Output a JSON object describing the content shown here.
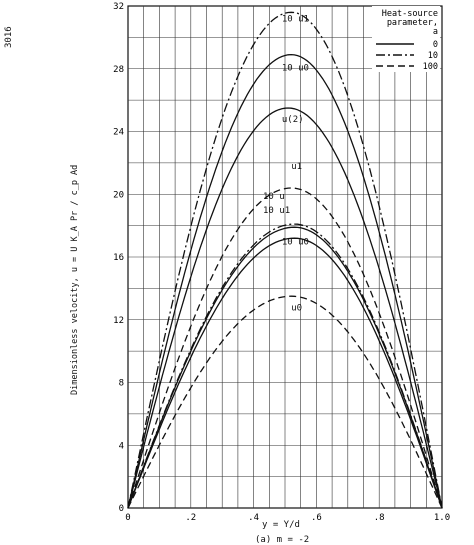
{
  "page": {
    "side_number": "3016",
    "caption": "(a) m = -2"
  },
  "chart_data": {
    "type": "line",
    "xlabel": "y = Y/d",
    "ylabel": "Dimensionless velocity, u = U",
    "ylabel_radical": "K_A Pr / c_p Ad",
    "xlim": [
      0,
      1.0
    ],
    "ylim": [
      0,
      32
    ],
    "x_ticks": [
      "0",
      ".2",
      ".4",
      ".6",
      ".8",
      "1.0"
    ],
    "y_ticks": [
      "0",
      "4",
      "8",
      "12",
      "16",
      "20",
      "24",
      "28",
      "32"
    ],
    "grid": true,
    "legend": {
      "title": "Heat-source parameter, a",
      "placement": "top-right",
      "entries": [
        {
          "label": "0",
          "style": "solid"
        },
        {
          "label": "10",
          "style": "dash-dot"
        },
        {
          "label": "100",
          "style": "dashed"
        }
      ]
    },
    "series": [
      {
        "name": "10 u1",
        "style": "dash-dot",
        "peak": 31.6,
        "peak_x": 0.52
      },
      {
        "name": "10 u0",
        "style": "solid",
        "peak": 28.9,
        "peak_x": 0.52
      },
      {
        "name": "u(2)",
        "style": "solid",
        "peak": 25.5,
        "peak_x": 0.51
      },
      {
        "name": "u1",
        "style": "dashed",
        "peak": 20.4,
        "peak_x": 0.52
      },
      {
        "name": "10 u",
        "style": "dash-dot",
        "peak": 18.1,
        "peak_x": 0.53
      },
      {
        "name": "10 u1",
        "style": "solid",
        "peak": 17.9,
        "peak_x": 0.53
      },
      {
        "name": "10 u0",
        "style": "solid",
        "peak": 17.2,
        "peak_x": 0.53
      },
      {
        "name": "u0",
        "style": "dashed",
        "peak": 13.5,
        "peak_x": 0.52
      }
    ],
    "annotations": [
      {
        "text": "10 u1",
        "x": 0.49,
        "y": 31.0
      },
      {
        "text": "10 u0",
        "x": 0.49,
        "y": 27.9
      },
      {
        "text": "u(2)",
        "x": 0.49,
        "y": 24.6
      },
      {
        "text": "u1",
        "x": 0.52,
        "y": 21.6
      },
      {
        "text": "10 u",
        "x": 0.43,
        "y": 19.7
      },
      {
        "text": "10 u1",
        "x": 0.43,
        "y": 18.8
      },
      {
        "text": "10 u0",
        "x": 0.49,
        "y": 16.8
      },
      {
        "text": "u0",
        "x": 0.52,
        "y": 12.6
      }
    ]
  }
}
